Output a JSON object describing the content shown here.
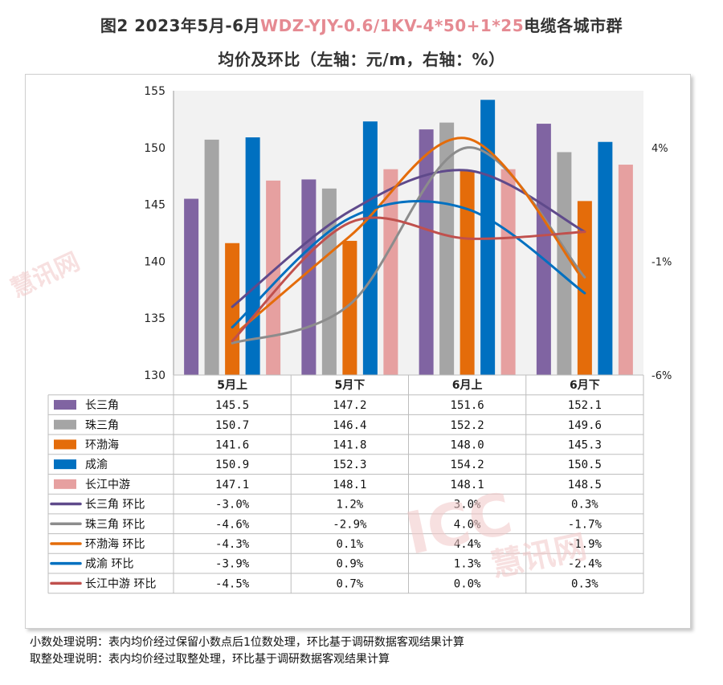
{
  "title": {
    "line1_prefix": "图2 2023年5月-6月",
    "line1_highlight": "WDZ-YJY-0.6/1KV-4*50+1*25",
    "line1_suffix": "电缆各城市群",
    "line2": "均价及环比（左轴：元/m，右轴：%）"
  },
  "notes": [
    "小数处理说明：表内均价经过保留小数点后1位数处理，环比基于调研数据客观结果计算",
    "取整处理说明：表内均价经过取整处理，环比基于调研数据客观结果计算"
  ],
  "watermark": {
    "text_cn": "慧讯网",
    "text_en": "ICC"
  },
  "colors": {
    "长三角": "#8064a2",
    "珠三角": "#a5a5a5",
    "环渤海": "#e46c0a",
    "成渝": "#0070c0",
    "长江中游": "#e6a0a0",
    "长三角_line": "#5f4a8b",
    "珠三角_line": "#8c8c8c",
    "环渤海_line": "#e46c0a",
    "成渝_line": "#0070c0",
    "长江中游_line": "#c0504d"
  },
  "chart_data": {
    "type": "bar",
    "categories": [
      "5月上",
      "5月下",
      "6月上",
      "6月下"
    ],
    "left_axis": {
      "min": 130,
      "max": 155,
      "ticks": [
        130,
        135,
        140,
        145,
        150,
        155
      ]
    },
    "right_axis": {
      "min": -6,
      "max": 6.5,
      "ticks": [
        {
          "value": 4,
          "label": "4%"
        },
        {
          "value": -1,
          "label": "-1%"
        },
        {
          "value": -6,
          "label": "-6%"
        }
      ]
    },
    "bar_series": [
      {
        "name": "长三角",
        "values": [
          145.5,
          147.2,
          151.6,
          152.1
        ],
        "labels": [
          "145.5",
          "147.2",
          "151.6",
          "152.1"
        ]
      },
      {
        "name": "珠三角",
        "values": [
          150.7,
          146.4,
          152.2,
          149.6
        ],
        "labels": [
          "150.7",
          "146.4",
          "152.2",
          "149.6"
        ]
      },
      {
        "name": "环渤海",
        "values": [
          141.6,
          141.8,
          148.0,
          145.3
        ],
        "labels": [
          "141.6",
          "141.8",
          "148.0",
          "145.3"
        ]
      },
      {
        "name": "成渝",
        "values": [
          150.9,
          152.3,
          154.2,
          150.5
        ],
        "labels": [
          "150.9",
          "152.3",
          "154.2",
          "150.5"
        ]
      },
      {
        "name": "长江中游",
        "values": [
          147.1,
          148.1,
          148.1,
          148.5
        ],
        "labels": [
          "147.1",
          "148.1",
          "148.1",
          "148.5"
        ]
      }
    ],
    "line_series": [
      {
        "name": "长三角 环比",
        "base": "长三角",
        "values": [
          -3.0,
          1.2,
          3.0,
          0.3
        ],
        "labels": [
          "-3.0%",
          "1.2%",
          "3.0%",
          "0.3%"
        ]
      },
      {
        "name": "珠三角 环比",
        "base": "珠三角",
        "values": [
          -4.6,
          -2.9,
          4.0,
          -1.7
        ],
        "labels": [
          "-4.6%",
          "-2.9%",
          "4.0%",
          "-1.7%"
        ]
      },
      {
        "name": "环渤海 环比",
        "base": "环渤海",
        "values": [
          -4.3,
          0.1,
          4.4,
          -1.9
        ],
        "labels": [
          "-4.3%",
          "0.1%",
          "4.4%",
          "-1.9%"
        ]
      },
      {
        "name": "成渝 环比",
        "base": "成渝",
        "values": [
          -3.9,
          0.9,
          1.3,
          -2.4
        ],
        "labels": [
          "-3.9%",
          "0.9%",
          "1.3%",
          "-2.4%"
        ]
      },
      {
        "name": "长江中游 环比",
        "base": "长江中游",
        "values": [
          -4.5,
          0.7,
          0.0,
          0.3
        ],
        "labels": [
          "-4.5%",
          "0.7%",
          "0.0%",
          "0.3%"
        ]
      }
    ],
    "grid": false,
    "legend": "data-table-below"
  }
}
